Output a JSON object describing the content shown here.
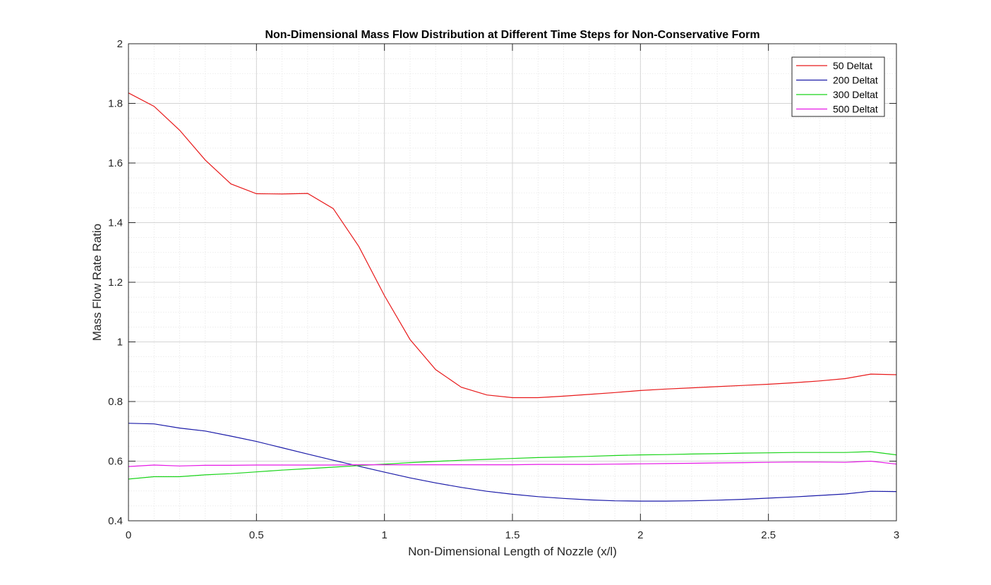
{
  "chart_data": {
    "type": "line",
    "title": "Non-Dimensional Mass Flow Distribution at Different Time Steps for Non-Conservative Form",
    "xlabel": "Non-Dimensional Length of Nozzle (x/l)",
    "ylabel": "Mass Flow Rate Ratio",
    "xlim": [
      0,
      3
    ],
    "ylim": [
      0.4,
      2
    ],
    "xticks": [
      0,
      0.5,
      1,
      1.5,
      2,
      2.5,
      3
    ],
    "xtick_labels": [
      "0",
      "0.5",
      "1",
      "1.5",
      "2",
      "2.5",
      "3"
    ],
    "yticks": [
      0.4,
      0.6,
      0.8,
      1.0,
      1.2,
      1.4,
      1.6,
      1.8,
      2.0
    ],
    "ytick_labels": [
      "0.4",
      "0.6",
      "0.8",
      "1",
      "1.2",
      "1.4",
      "1.6",
      "1.8",
      "2"
    ],
    "grid": "major and minor",
    "legend_position": "top-right",
    "x": [
      0,
      0.1,
      0.2,
      0.3,
      0.4,
      0.5,
      0.6,
      0.7,
      0.8,
      0.9,
      1.0,
      1.1,
      1.2,
      1.3,
      1.4,
      1.5,
      1.6,
      1.7,
      1.8,
      1.9,
      2.0,
      2.1,
      2.2,
      2.3,
      2.4,
      2.5,
      2.6,
      2.7,
      2.8,
      2.9,
      3.0
    ],
    "series": [
      {
        "name": "50 Deltat",
        "color": "#e8191a",
        "values": [
          1.835,
          1.79,
          1.71,
          1.61,
          1.53,
          1.497,
          1.496,
          1.498,
          1.447,
          1.32,
          1.155,
          1.008,
          0.907,
          0.848,
          0.822,
          0.813,
          0.813,
          0.818,
          0.824,
          0.83,
          0.837,
          0.842,
          0.846,
          0.85,
          0.854,
          0.858,
          0.863,
          0.869,
          0.877,
          0.892,
          0.89
        ]
      },
      {
        "name": "200 Deltat",
        "color": "#1a1aa8",
        "values": [
          0.727,
          0.725,
          0.711,
          0.701,
          0.684,
          0.666,
          0.645,
          0.624,
          0.603,
          0.583,
          0.563,
          0.544,
          0.527,
          0.512,
          0.499,
          0.489,
          0.481,
          0.475,
          0.47,
          0.467,
          0.466,
          0.466,
          0.467,
          0.469,
          0.472,
          0.476,
          0.48,
          0.485,
          0.49,
          0.499,
          0.498
        ]
      },
      {
        "name": "300 Deltat",
        "color": "#19d419",
        "values": [
          0.54,
          0.548,
          0.548,
          0.554,
          0.558,
          0.564,
          0.57,
          0.575,
          0.58,
          0.585,
          0.59,
          0.595,
          0.599,
          0.603,
          0.606,
          0.609,
          0.612,
          0.614,
          0.616,
          0.619,
          0.621,
          0.622,
          0.624,
          0.625,
          0.627,
          0.628,
          0.629,
          0.629,
          0.629,
          0.632,
          0.621
        ]
      },
      {
        "name": "500 Deltat",
        "color": "#e619e6",
        "values": [
          0.582,
          0.587,
          0.584,
          0.586,
          0.586,
          0.587,
          0.587,
          0.587,
          0.587,
          0.588,
          0.588,
          0.588,
          0.588,
          0.588,
          0.588,
          0.588,
          0.589,
          0.589,
          0.589,
          0.59,
          0.591,
          0.592,
          0.593,
          0.594,
          0.595,
          0.596,
          0.597,
          0.597,
          0.596,
          0.6,
          0.59
        ]
      }
    ]
  }
}
